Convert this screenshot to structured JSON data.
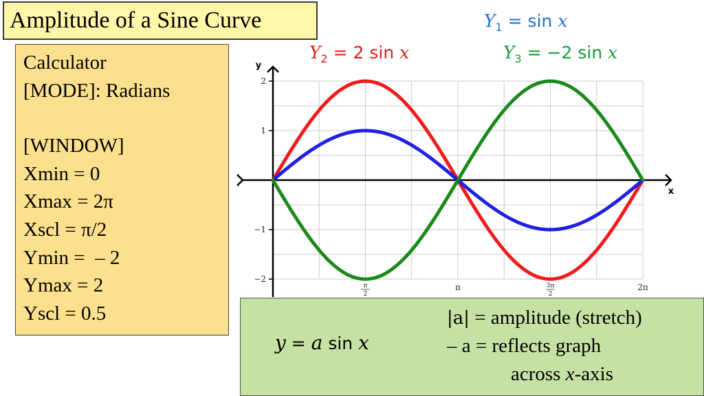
{
  "title": "Amplitude of a Sine Curve",
  "window_panel": {
    "line1": "Calculator",
    "line2": "[MODE]: Radians",
    "line3": "[WINDOW]",
    "xmin": "Xmin = 0",
    "xmax": "Xmax = 2π",
    "xscl": "Xscl = π/2",
    "ymin": "Ymin =  – 2",
    "ymax": "Ymax = 2",
    "yscl": "Yscl = 0.5"
  },
  "equations": {
    "y1": {
      "var": "Y",
      "sub": "1",
      "rest": " = sin ",
      "x": "x"
    },
    "y2": {
      "var": "Y",
      "sub": "2",
      "rest": " = 2 sin ",
      "x": "x"
    },
    "y3": {
      "var": "Y",
      "sub": "3",
      "rest": " = −2 sin ",
      "x": "x"
    }
  },
  "note": {
    "eq_y": "y",
    "eq_eq": " = ",
    "eq_a": "a",
    "eq_sin": " sin ",
    "eq_x": "x",
    "abs_a": "|a|",
    "amp_text": " = amplitude (stretch)",
    "reflect_text": "– a = reflects graph",
    "across_pre": "across ",
    "across_x": "x",
    "across_post": "-axis"
  },
  "colors": {
    "y1": "#1f1fe6",
    "y2": "#ee1c1c",
    "y3": "#1a8a1a"
  },
  "chart_data": {
    "type": "line",
    "xlabel": "x",
    "ylabel": "y",
    "xlim": [
      0,
      6.2832
    ],
    "ylim": [
      -2,
      2
    ],
    "grid": true,
    "x_ticks": [
      {
        "value": 1.5708,
        "num": "π",
        "den": "2"
      },
      {
        "value": 3.1416,
        "label": "π"
      },
      {
        "value": 4.7124,
        "num": "3π",
        "den": "2"
      },
      {
        "value": 6.2832,
        "label": "2π"
      }
    ],
    "y_ticks": [
      {
        "value": 2,
        "label": "2"
      },
      {
        "value": 1,
        "label": "1"
      },
      {
        "value": -1,
        "label": "−1"
      },
      {
        "value": -2,
        "label": "−2"
      }
    ],
    "x": [
      0,
      1.5708,
      3.1416,
      4.7124,
      6.2832
    ],
    "series": [
      {
        "name": "Y1 = sin x",
        "amplitude": 1,
        "values": [
          0,
          1,
          0,
          -1,
          0
        ]
      },
      {
        "name": "Y2 = 2 sin x",
        "amplitude": 2,
        "values": [
          0,
          2,
          0,
          -2,
          0
        ]
      },
      {
        "name": "Y3 = −2 sin x",
        "amplitude": -2,
        "values": [
          0,
          -2,
          0,
          2,
          0
        ]
      }
    ]
  }
}
